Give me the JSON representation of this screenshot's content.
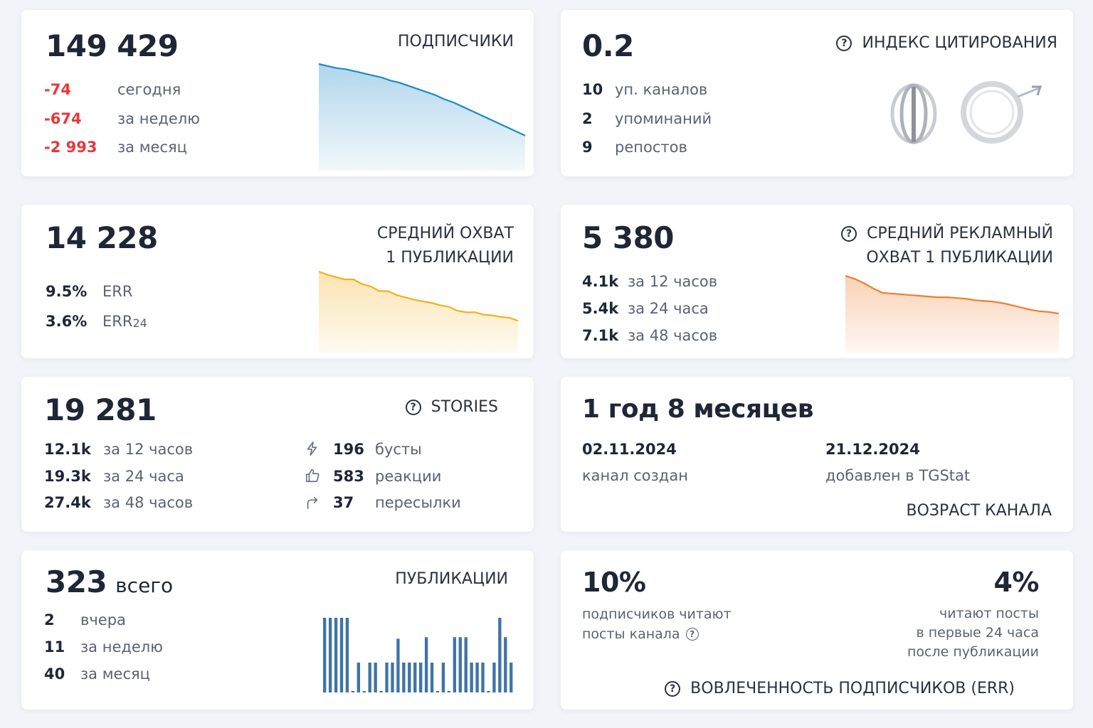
{
  "subscribers": {
    "value": "149 429",
    "title": "ПОДПИСЧИКИ",
    "rows": [
      {
        "value": "-74",
        "label": "сегодня"
      },
      {
        "value": "-674",
        "label": "за неделю"
      },
      {
        "value": "-2 993",
        "label": "за месяц"
      }
    ],
    "color": "#1d8ac7",
    "trend": [
      100,
      98,
      96,
      95,
      93,
      91,
      89,
      87,
      84,
      82,
      79,
      76,
      73,
      70,
      66,
      63,
      59,
      55,
      51,
      47,
      43,
      39,
      35,
      31
    ]
  },
  "citation": {
    "value": "0.2",
    "title": "ИНДЕКС ЦИТИРОВАНИЯ",
    "rows": [
      {
        "value": "10",
        "label": "уп. каналов"
      },
      {
        "value": "2",
        "label": "упоминаний"
      },
      {
        "value": "9",
        "label": "репостов"
      }
    ]
  },
  "avg_reach": {
    "value": "14 228",
    "title_line1": "СРЕДНИЙ ОХВАТ",
    "title_line2": "1 ПУБЛИКАЦИИ",
    "rows": [
      {
        "value": "9.5%",
        "label": "ERR"
      },
      {
        "value": "3.6%",
        "label": "ERR",
        "sub": "24"
      }
    ],
    "color": "#f2b01e",
    "trend": [
      100,
      96,
      93,
      90,
      90,
      84,
      81,
      75,
      75,
      70,
      67,
      64,
      62,
      60,
      57,
      55,
      50,
      48,
      48,
      45,
      44,
      42,
      41,
      37
    ]
  },
  "ad_reach": {
    "value": "5 380",
    "title_line1": "СРЕДНИЙ РЕКЛАМНЫЙ",
    "title_line2": "ОХВАТ 1 ПУБЛИКАЦИИ",
    "rows": [
      {
        "value": "4.1k",
        "label": "за 12 часов"
      },
      {
        "value": "5.4k",
        "label": "за 24 часа"
      },
      {
        "value": "7.1k",
        "label": "за 48 часов"
      }
    ],
    "color": "#f07d2c",
    "trend": [
      100,
      96,
      90,
      83,
      77,
      76,
      75,
      74,
      73,
      72,
      71,
      71,
      70,
      69,
      67,
      66,
      65,
      63,
      60,
      57,
      54,
      52,
      51,
      49
    ]
  },
  "stories": {
    "value": "19 281",
    "title": "STORIES",
    "rows": [
      {
        "value": "12.1k",
        "label": "за 12 часов"
      },
      {
        "value": "19.3k",
        "label": "за 24 часа"
      },
      {
        "value": "27.4k",
        "label": "за 48 часов"
      }
    ],
    "stats": [
      {
        "icon": "lightning-icon",
        "value": "196",
        "label": "бусты"
      },
      {
        "icon": "thumbs-up-icon",
        "value": "583",
        "label": "реакции"
      },
      {
        "icon": "share-arrow-icon",
        "value": "37",
        "label": "пересылки"
      }
    ]
  },
  "age": {
    "value": "1 год 8 месяцев",
    "created_date": "02.11.2024",
    "created_label": "канал создан",
    "added_date": "21.12.2024",
    "added_label": "добавлен в TGStat",
    "title": "ВОЗРАСТ КАНАЛА"
  },
  "publications": {
    "value": "323",
    "value_suffix": "всего",
    "title": "ПУБЛИКАЦИИ",
    "rows": [
      {
        "value": "2",
        "label": "вчера"
      },
      {
        "value": "11",
        "label": "за неделю"
      },
      {
        "value": "40",
        "label": "за месяц"
      }
    ],
    "color": "#3f74a6",
    "bars": [
      5,
      5,
      5,
      5,
      5,
      0,
      2,
      0,
      2,
      2,
      0,
      2,
      2,
      3.6,
      2,
      2,
      2,
      2,
      3.7,
      2,
      0,
      2,
      0,
      3.7,
      3.7,
      3.7,
      2,
      2,
      2,
      0,
      2,
      5,
      3.7,
      2
    ]
  },
  "engagement": {
    "left_value": "10%",
    "left_line1": "подписчиков читают",
    "left_line2": "посты канала",
    "right_value": "4%",
    "right_line1": "читают посты",
    "right_line2": "в первые 24 часа",
    "right_line3": "после публикации",
    "title": "ВОВЛЕЧЕННОСТЬ ПОДПИСЧИКОВ (ERR)"
  },
  "help_glyph": "?"
}
